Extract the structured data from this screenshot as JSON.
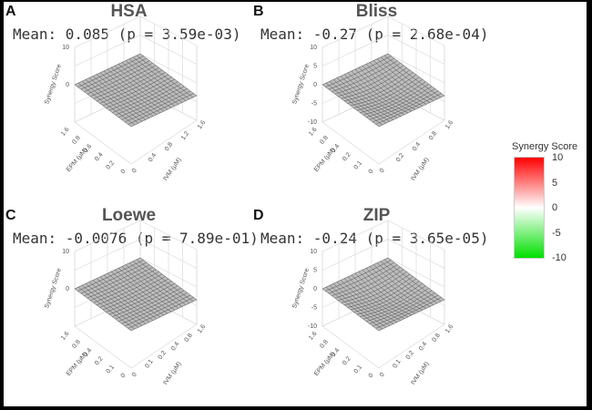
{
  "chart_data": [
    {
      "type": "surface3d",
      "letter": "A",
      "title": "HSA",
      "mean_text": "Mean: 0.085 (p = 3.59e-03)",
      "zlabel": "Synergy Score",
      "xlabel": "IVM (µM)",
      "ylabel": "EPM (µM)",
      "z_ticks": [
        "10",
        "0"
      ],
      "x_ticks": [
        "0",
        "0.4",
        "0.8",
        "1.2",
        "1.6"
      ],
      "y_ticks": [
        "0",
        "0.2",
        "0.4",
        "0.6",
        "0.8",
        "1.6"
      ],
      "zlim": [
        -10,
        10
      ]
    },
    {
      "type": "surface3d",
      "letter": "B",
      "title": "Bliss",
      "mean_text": "Mean: -0.27 (p = 2.68e-04)",
      "zlabel": "Synergy Score",
      "xlabel": "IVM (µM)",
      "ylabel": "EPM (µM)",
      "z_ticks": [
        "10",
        "5",
        "0",
        "-5",
        "-10"
      ],
      "x_ticks": [
        "0",
        "0.2",
        "0.4",
        "0.8",
        "1.6"
      ],
      "y_ticks": [
        "0",
        "0.1",
        "0.2",
        "0.4",
        "0.8",
        "1.6"
      ],
      "zlim": [
        -10,
        10
      ]
    },
    {
      "type": "surface3d",
      "letter": "C",
      "title": "Loewe",
      "mean_text": "Mean: -0.0076 (p = 7.89e-01)",
      "zlabel": "Synergy Score",
      "xlabel": "IVM (µM)",
      "ylabel": "EPM (µM)",
      "z_ticks": [
        "10",
        "0"
      ],
      "x_ticks": [
        "0",
        "0.1",
        "0.2",
        "0.4",
        "0.8",
        "1.6"
      ],
      "y_ticks": [
        "0",
        "0.1",
        "0.2",
        "0.4",
        "0.8",
        "1.6"
      ],
      "zlim": [
        -10,
        10
      ]
    },
    {
      "type": "surface3d",
      "letter": "D",
      "title": "ZIP",
      "mean_text": "Mean: -0.24 (p = 3.65e-05)",
      "zlabel": "Synergy Score",
      "xlabel": "IVM (µM)",
      "ylabel": "EPM (µM)",
      "z_ticks": [
        "10",
        "5",
        "0",
        "-5",
        "-10"
      ],
      "x_ticks": [
        "0",
        "0.1",
        "0.2",
        "0.4",
        "0.8",
        "1.6"
      ],
      "y_ticks": [
        "0",
        "0.1",
        "0.2",
        "0.4",
        "0.8",
        "1.6"
      ],
      "zlim": [
        -10,
        10
      ]
    }
  ],
  "legend": {
    "title": "Synergy Score",
    "ticks": [
      "10",
      "5",
      "0",
      "-5",
      "-10"
    ],
    "colors": {
      "high": "#ff0000",
      "mid": "#ffffff",
      "low": "#00e000"
    }
  }
}
